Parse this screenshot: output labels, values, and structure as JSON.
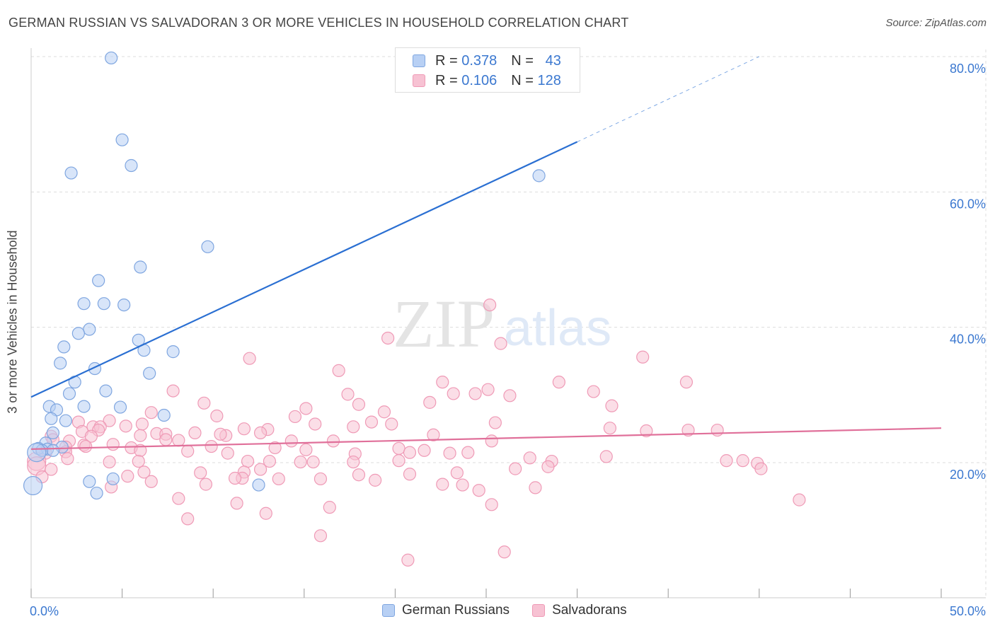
{
  "title": "GERMAN RUSSIAN VS SALVADORAN 3 OR MORE VEHICLES IN HOUSEHOLD CORRELATION CHART",
  "source": "Source: ZipAtlas.com",
  "watermark": {
    "zip": "ZIP",
    "atlas": "atlas"
  },
  "legend": {
    "rows": [
      {
        "r_label": "R =",
        "r_value": "0.378",
        "n_label": "N =",
        "n_value": "43"
      },
      {
        "r_label": "R =",
        "r_value": "0.106",
        "n_label": "N =",
        "n_value": "128"
      }
    ]
  },
  "bottom_legend": {
    "series1": "German Russians",
    "series2": "Salvadorans"
  },
  "colors": {
    "blue_fill": "#b8d0f4",
    "blue_stroke": "#7fa6e0",
    "blue_line": "#2a6fd2",
    "pink_fill": "#f7c2d3",
    "pink_stroke": "#ef9ab6",
    "pink_line": "#e0709a",
    "axis_text": "#3b78d0",
    "grid": "#dddddd"
  },
  "chart_data": {
    "type": "scatter",
    "title": "GERMAN RUSSIAN VS SALVADORAN 3 OR MORE VEHICLES IN HOUSEHOLD CORRELATION CHART",
    "xlabel": "",
    "ylabel": "3 or more Vehicles in Household",
    "xlim": [
      0,
      50
    ],
    "ylim": [
      2,
      81
    ],
    "x_tick_labels": [
      "0.0%",
      "50.0%"
    ],
    "y_ticks": [
      20,
      40,
      60,
      80
    ],
    "y_tick_labels": [
      "20.0%",
      "40.0%",
      "60.0%",
      "80.0%"
    ],
    "series": [
      {
        "name": "German Russians",
        "R": 0.378,
        "N": 43,
        "trend": {
          "x0": 0,
          "y0": 29.7,
          "x1": 30,
          "y1": 67.4,
          "dash_to_x": 40,
          "dash_to_y": 80
        },
        "points": [
          [
            4.4,
            79.8
          ],
          [
            5,
            67.7
          ],
          [
            5.5,
            63.9
          ],
          [
            2.2,
            62.8
          ],
          [
            27.9,
            62.4
          ],
          [
            9.7,
            51.9
          ],
          [
            6,
            48.9
          ],
          [
            3.7,
            46.9
          ],
          [
            2.9,
            43.5
          ],
          [
            4,
            43.5
          ],
          [
            5.1,
            43.3
          ],
          [
            3.2,
            39.7
          ],
          [
            2.6,
            39.1
          ],
          [
            5.9,
            38.1
          ],
          [
            1.8,
            37.1
          ],
          [
            6.2,
            36.6
          ],
          [
            7.8,
            36.4
          ],
          [
            1.6,
            34.7
          ],
          [
            3.5,
            33.9
          ],
          [
            6.5,
            33.2
          ],
          [
            2.4,
            31.9
          ],
          [
            4.1,
            30.6
          ],
          [
            2.1,
            30.2
          ],
          [
            4.9,
            28.2
          ],
          [
            2.9,
            28.3
          ],
          [
            1,
            28.3
          ],
          [
            1.4,
            27.8
          ],
          [
            7.3,
            27.0
          ],
          [
            1.1,
            26.5
          ],
          [
            1.9,
            26.2
          ],
          [
            1.2,
            24.4
          ],
          [
            0.8,
            22.9
          ],
          [
            1.7,
            22.3
          ],
          [
            0.4,
            22.1
          ],
          [
            0.9,
            22.0
          ],
          [
            0.6,
            21.8
          ],
          [
            1.2,
            21.8
          ],
          [
            0.3,
            21.5
          ],
          [
            4.5,
            17.6
          ],
          [
            3.2,
            17.2
          ],
          [
            12.5,
            16.7
          ],
          [
            3.6,
            15.5
          ],
          [
            0.1,
            16.6
          ]
        ]
      },
      {
        "name": "Salvadorans",
        "R": 0.106,
        "N": 128,
        "trend": {
          "x0": 0,
          "y0": 22.0,
          "x1": 50,
          "y1": 25.1
        },
        "points": [
          [
            25.2,
            43.3
          ],
          [
            19.6,
            38.4
          ],
          [
            25.8,
            37.6
          ],
          [
            12,
            35.4
          ],
          [
            33.6,
            35.6
          ],
          [
            16.9,
            33.6
          ],
          [
            22.6,
            31.9
          ],
          [
            36,
            31.9
          ],
          [
            29,
            31.9
          ],
          [
            7.8,
            30.6
          ],
          [
            17.4,
            30.1
          ],
          [
            25.1,
            30.8
          ],
          [
            30.9,
            30.5
          ],
          [
            18,
            28.6
          ],
          [
            24.4,
            30.2
          ],
          [
            23.2,
            30.2
          ],
          [
            26.3,
            29.9
          ],
          [
            21.9,
            28.9
          ],
          [
            9.5,
            28.8
          ],
          [
            31.9,
            28.4
          ],
          [
            15.1,
            28.0
          ],
          [
            19.4,
            27.5
          ],
          [
            6.6,
            27.4
          ],
          [
            10.2,
            26.9
          ],
          [
            14.5,
            26.8
          ],
          [
            4.3,
            26.2
          ],
          [
            18.7,
            26.0
          ],
          [
            15.6,
            25.7
          ],
          [
            19.8,
            25.7
          ],
          [
            17.7,
            25.3
          ],
          [
            5.2,
            25.4
          ],
          [
            6.1,
            25.7
          ],
          [
            11.7,
            25.0
          ],
          [
            13,
            24.9
          ],
          [
            25.5,
            25.9
          ],
          [
            22.1,
            24.1
          ],
          [
            6.9,
            24.3
          ],
          [
            3.4,
            25.3
          ],
          [
            3.8,
            25.3
          ],
          [
            2.6,
            26.0
          ],
          [
            3.7,
            24.8
          ],
          [
            9,
            24.4
          ],
          [
            10.7,
            24.0
          ],
          [
            10.4,
            24.2
          ],
          [
            7.4,
            24.2
          ],
          [
            31.8,
            25.1
          ],
          [
            36.1,
            24.8
          ],
          [
            33.8,
            24.7
          ],
          [
            37.7,
            24.8
          ],
          [
            12.6,
            24.4
          ],
          [
            2.8,
            24.6
          ],
          [
            1.1,
            23.9
          ],
          [
            6,
            24.0
          ],
          [
            7.4,
            23.4
          ],
          [
            8.1,
            23.3
          ],
          [
            14.3,
            23.2
          ],
          [
            25.3,
            23.2
          ],
          [
            16.6,
            23.2
          ],
          [
            3.3,
            23.9
          ],
          [
            1.2,
            23.4
          ],
          [
            2.1,
            23.2
          ],
          [
            4.5,
            22.7
          ],
          [
            2.9,
            22.6
          ],
          [
            3,
            22.4
          ],
          [
            1.9,
            22.3
          ],
          [
            5.5,
            22.2
          ],
          [
            9.9,
            22.4
          ],
          [
            13.4,
            22.2
          ],
          [
            20.2,
            22.1
          ],
          [
            21.6,
            21.8
          ],
          [
            15.1,
            21.9
          ],
          [
            6,
            21.8
          ],
          [
            8.6,
            21.7
          ],
          [
            20.8,
            21.5
          ],
          [
            17.8,
            21.3
          ],
          [
            23,
            21.4
          ],
          [
            24,
            21.5
          ],
          [
            27.4,
            20.7
          ],
          [
            31.6,
            20.9
          ],
          [
            10.8,
            21.4
          ],
          [
            1.9,
            21.6
          ],
          [
            0.8,
            21.4
          ],
          [
            2,
            20.6
          ],
          [
            0.3,
            20.2
          ],
          [
            4.3,
            20.1
          ],
          [
            5.9,
            20.2
          ],
          [
            13.1,
            20.2
          ],
          [
            11.9,
            20.2
          ],
          [
            14.8,
            20.1
          ],
          [
            15.5,
            20.1
          ],
          [
            17.7,
            20.1
          ],
          [
            20.2,
            20.3
          ],
          [
            28.6,
            20.2
          ],
          [
            38.2,
            20.3
          ],
          [
            39.1,
            20.3
          ],
          [
            39.9,
            19.9
          ],
          [
            40.1,
            19.1
          ],
          [
            0.3,
            19.5
          ],
          [
            1.1,
            19.0
          ],
          [
            6.2,
            18.6
          ],
          [
            12.6,
            19.0
          ],
          [
            11.7,
            18.6
          ],
          [
            18,
            18.2
          ],
          [
            20.8,
            18.3
          ],
          [
            23.4,
            18.5
          ],
          [
            26.6,
            19.1
          ],
          [
            28.4,
            19.4
          ],
          [
            5.3,
            18.0
          ],
          [
            9.3,
            18.5
          ],
          [
            11.6,
            17.7
          ],
          [
            11.2,
            17.7
          ],
          [
            13.6,
            17.6
          ],
          [
            15.9,
            17.6
          ],
          [
            18.9,
            17.4
          ],
          [
            6.6,
            17.2
          ],
          [
            9.6,
            16.8
          ],
          [
            22.6,
            16.8
          ],
          [
            23.7,
            16.7
          ],
          [
            4.4,
            16.4
          ],
          [
            27.7,
            16.3
          ],
          [
            0.6,
            17.9
          ],
          [
            24.6,
            15.9
          ],
          [
            8.1,
            14.7
          ],
          [
            11.3,
            14.0
          ],
          [
            25.3,
            13.8
          ],
          [
            16.4,
            13.4
          ],
          [
            12.9,
            12.5
          ],
          [
            8.6,
            11.7
          ],
          [
            42.2,
            14.5
          ],
          [
            15.9,
            9.2
          ],
          [
            26,
            6.8
          ],
          [
            20.7,
            5.6
          ]
        ]
      }
    ]
  }
}
